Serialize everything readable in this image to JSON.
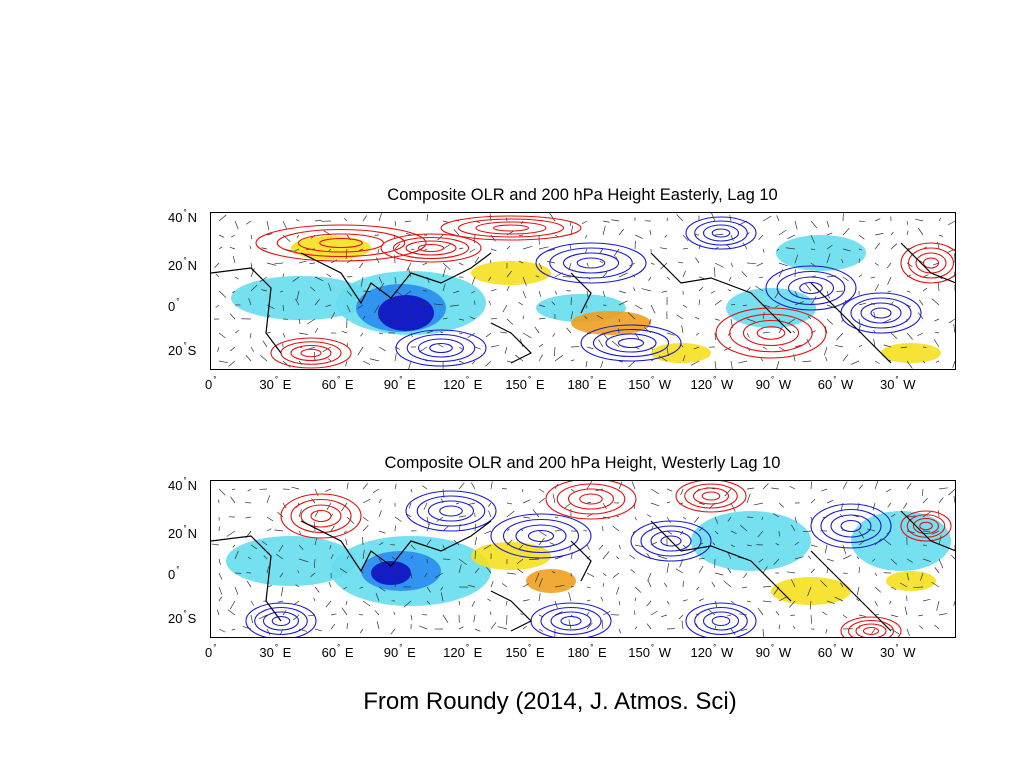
{
  "panels": [
    {
      "title": "Composite OLR and 200 hPa Height Easterly, Lag 10",
      "y_ticks": [
        {
          "value": "40",
          "hemi": "N"
        },
        {
          "value": "20",
          "hemi": "N"
        },
        {
          "value": "0",
          "hemi": ""
        },
        {
          "value": "20",
          "hemi": "S"
        }
      ],
      "x_ticks": [
        {
          "value": "0",
          "dir": ""
        },
        {
          "value": "30",
          "dir": "E"
        },
        {
          "value": "60",
          "dir": "E"
        },
        {
          "value": "90",
          "dir": "E"
        },
        {
          "value": "120",
          "dir": "E"
        },
        {
          "value": "150",
          "dir": "E"
        },
        {
          "value": "180",
          "dir": "E"
        },
        {
          "value": "150",
          "dir": "W"
        },
        {
          "value": "120",
          "dir": "W"
        },
        {
          "value": "90",
          "dir": "W"
        },
        {
          "value": "60",
          "dir": "W"
        },
        {
          "value": "30",
          "dir": "W"
        }
      ]
    },
    {
      "title": "Composite OLR and 200 hPa Height, Westerly Lag 10",
      "y_ticks": [
        {
          "value": "40",
          "hemi": "N"
        },
        {
          "value": "20",
          "hemi": "N"
        },
        {
          "value": "0",
          "hemi": ""
        },
        {
          "value": "20",
          "hemi": "S"
        }
      ],
      "x_ticks": [
        {
          "value": "0",
          "dir": ""
        },
        {
          "value": "30",
          "dir": "E"
        },
        {
          "value": "60",
          "dir": "E"
        },
        {
          "value": "90",
          "dir": "E"
        },
        {
          "value": "120",
          "dir": "E"
        },
        {
          "value": "150",
          "dir": "E"
        },
        {
          "value": "180",
          "dir": "E"
        },
        {
          "value": "150",
          "dir": "W"
        },
        {
          "value": "120",
          "dir": "W"
        },
        {
          "value": "90",
          "dir": "W"
        },
        {
          "value": "60",
          "dir": "W"
        },
        {
          "value": "30",
          "dir": "W"
        }
      ]
    }
  ],
  "caption": "From Roundy (2014, J. Atmos. Sci)",
  "colors": {
    "positive_contour": "#e01010",
    "negative_contour": "#1a1ad0",
    "olr_negative_light": "#66ddee",
    "olr_negative_mid": "#2a8cf0",
    "olr_negative_strong": "#1010c0",
    "olr_positive": "#f5e020",
    "olr_positive_strong": "#f0a020",
    "coast": "#000000"
  }
}
